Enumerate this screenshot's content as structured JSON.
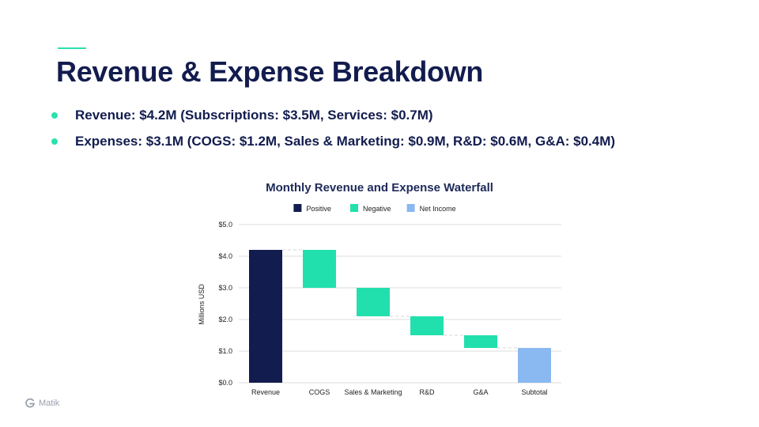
{
  "slide": {
    "title": "Revenue & Expense Breakdown",
    "bullets": [
      "Revenue: $4.2M (Subscriptions: $3.5M, Services: $0.7M)",
      "Expenses: $3.1M (COGS: $1.2M, Sales & Marketing: $0.9M, R&D: $0.6M, G&A: $0.4M)"
    ],
    "accent_color": "#2de0ae",
    "title_color": "#121c4e"
  },
  "branding": {
    "logo_text": "Matik",
    "logo_icon": "matik-logo-icon"
  },
  "chart_data": {
    "type": "waterfall",
    "title": "Monthly Revenue and Expense Waterfall",
    "ylabel": "Millions USD",
    "xlabel": "",
    "ylim": [
      0,
      5
    ],
    "yticks": [
      0,
      1,
      2,
      3,
      4,
      5
    ],
    "ytick_labels": [
      "$0.0",
      "$1.0",
      "$2.0",
      "$3.0",
      "$4.0",
      "$5.0"
    ],
    "grid": true,
    "legend": {
      "position": "top",
      "entries": [
        {
          "label": "Positive",
          "color": "#121c4e"
        },
        {
          "label": "Negative",
          "color": "#22e0ad"
        },
        {
          "label": "Net Income",
          "color": "#8ab8f0"
        }
      ]
    },
    "categories": [
      "Revenue",
      "COGS",
      "Sales & Marketing",
      "R&D",
      "G&A",
      "Subtotal"
    ],
    "bars": [
      {
        "category": "Revenue",
        "start": 0,
        "end": 4.2,
        "kind": "positive"
      },
      {
        "category": "COGS",
        "start": 4.2,
        "end": 3.0,
        "kind": "negative"
      },
      {
        "category": "Sales & Marketing",
        "start": 3.0,
        "end": 2.1,
        "kind": "negative"
      },
      {
        "category": "R&D",
        "start": 2.1,
        "end": 1.5,
        "kind": "negative"
      },
      {
        "category": "G&A",
        "start": 1.5,
        "end": 1.1,
        "kind": "negative"
      },
      {
        "category": "Subtotal",
        "start": 0,
        "end": 1.1,
        "kind": "net"
      }
    ],
    "colors": {
      "positive": "#121c4e",
      "negative": "#22e0ad",
      "net": "#8ab8f0",
      "grid": "#dcdcdc",
      "connector": "#d6d6d6",
      "text": "#222222",
      "title": "#1e2a5a"
    }
  }
}
